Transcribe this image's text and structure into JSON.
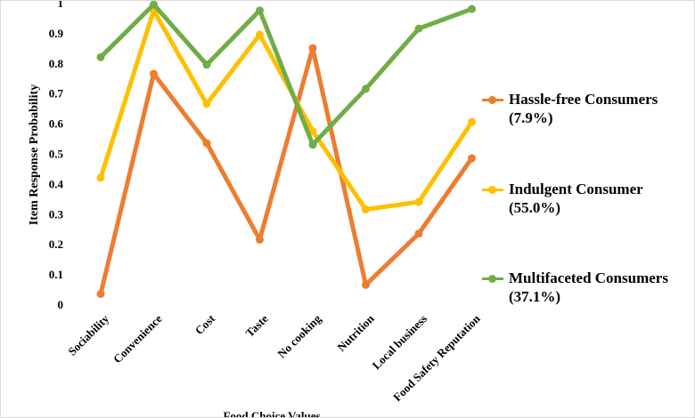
{
  "chart_data": {
    "type": "line",
    "x_label": "Food Choice Values",
    "y_label": "Item Response Probability",
    "categories": [
      "Sociability",
      "Convenience",
      "Cost",
      "Taste",
      "No cooking",
      "Nutrition",
      "Local business",
      "Food Safety Reputation"
    ],
    "series": [
      {
        "name": "Hassle-free Consumers (7.9%)",
        "color": "#ED7D31",
        "values": [
          0.04,
          0.77,
          0.54,
          0.22,
          0.855,
          0.07,
          0.24,
          0.49
        ]
      },
      {
        "name": "Indulgent Consumer (55.0%)",
        "color": "#FFC000",
        "values": [
          0.425,
          0.98,
          0.67,
          0.9,
          0.58,
          0.32,
          0.345,
          0.61
        ]
      },
      {
        "name": "Multifaceted Consumers (37.1%)",
        "color": "#70AD47",
        "values": [
          0.825,
          1.0,
          0.8,
          0.98,
          0.535,
          0.72,
          0.92,
          0.985
        ]
      }
    ],
    "ylim": [
      0,
      1
    ],
    "yticks": [
      0,
      0.1,
      0.2,
      0.3,
      0.4,
      0.5,
      0.6,
      0.7,
      0.8,
      0.9,
      1
    ],
    "grid": false,
    "legend": "right"
  }
}
